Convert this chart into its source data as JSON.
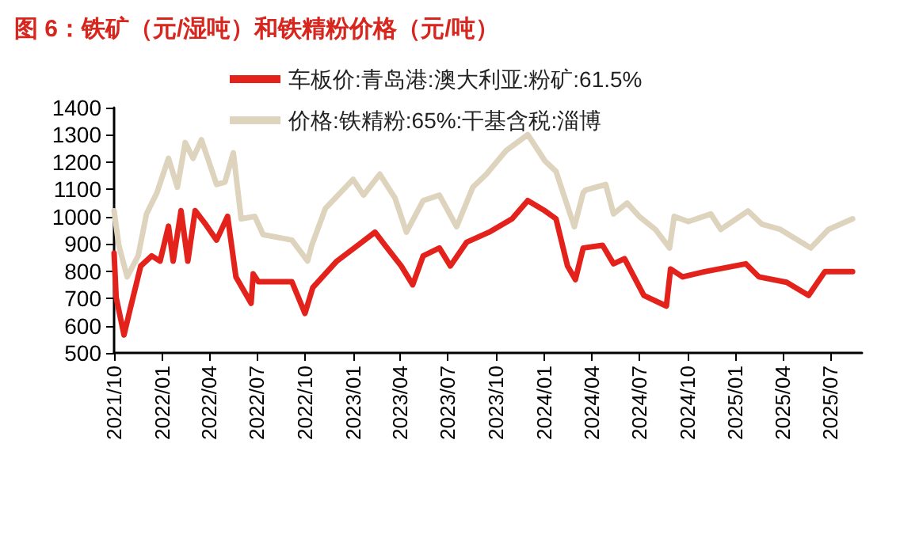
{
  "chart_data": {
    "type": "line",
    "title": "图 6：铁矿（元/湿吨）和铁精粉价格（元/吨）",
    "xlim": [
      "2021-10-01",
      "2025-08-31"
    ],
    "xticks": [
      {
        "value": "2021-10-01",
        "label": "2021/10"
      },
      {
        "value": "2022-01-01",
        "label": "2022/01"
      },
      {
        "value": "2022-04-01",
        "label": "2022/04"
      },
      {
        "value": "2022-07-01",
        "label": "2022/07"
      },
      {
        "value": "2022-10-01",
        "label": "2022/10"
      },
      {
        "value": "2023-01-01",
        "label": "2023/01"
      },
      {
        "value": "2023-04-01",
        "label": "2023/04"
      },
      {
        "value": "2023-07-01",
        "label": "2023/07"
      },
      {
        "value": "2023-10-01",
        "label": "2023/10"
      },
      {
        "value": "2024-01-01",
        "label": "2024/01"
      },
      {
        "value": "2024-04-01",
        "label": "2024/04"
      },
      {
        "value": "2024-07-01",
        "label": "2024/07"
      },
      {
        "value": "2024-10-01",
        "label": "2024/10"
      },
      {
        "value": "2025-01-01",
        "label": "2025/01"
      },
      {
        "value": "2025-04-01",
        "label": "2025/04"
      },
      {
        "value": "2025-07-01",
        "label": "2025/07"
      }
    ],
    "ylim": [
      500,
      1400
    ],
    "yticks": [
      500,
      600,
      700,
      800,
      900,
      1000,
      1100,
      1200,
      1300,
      1400
    ],
    "grid": false,
    "legend": "top",
    "marker": "none",
    "line_style": "solid",
    "series": [
      {
        "name": "车板价:青岛港:澳大利亚:粉矿:61.5%",
        "color": "#e3221b",
        "x": [
          "2021-10-01",
          "2021-10-05",
          "2021-10-20",
          "2021-11-01",
          "2021-11-21",
          "2021-12-12",
          "2021-12-28",
          "2022-01-13",
          "2022-01-22",
          "2022-02-06",
          "2022-02-19",
          "2022-03-05",
          "2022-03-25",
          "2022-04-15",
          "2022-05-06",
          "2022-05-22",
          "2022-06-20",
          "2022-06-24",
          "2022-07-04",
          "2022-09-06",
          "2022-10-01",
          "2022-10-16",
          "2022-12-01",
          "2023-01-10",
          "2023-02-12",
          "2023-03-03",
          "2023-04-03",
          "2023-04-25",
          "2023-05-15",
          "2023-06-15",
          "2023-07-06",
          "2023-08-06",
          "2023-09-18",
          "2023-11-01",
          "2023-12-01",
          "2024-01-03",
          "2024-01-24",
          "2024-02-15",
          "2024-03-01",
          "2024-03-16",
          "2024-04-22",
          "2024-05-13",
          "2024-06-03",
          "2024-07-10",
          "2024-08-22",
          "2024-08-30",
          "2024-09-22",
          "2024-11-03",
          "2025-01-21",
          "2025-02-15",
          "2025-04-09",
          "2025-05-21",
          "2025-06-21",
          "2025-08-13"
        ],
        "values": [
          866,
          703,
          566,
          663,
          819,
          856,
          837,
          965,
          837,
          1022,
          837,
          1022,
          972,
          914,
          1001,
          779,
          682,
          790,
          761,
          761,
          645,
          740,
          837,
          895,
          943,
          895,
          819,
          750,
          856,
          885,
          819,
          906,
          943,
          992,
          1059,
          1021,
          992,
          819,
          769,
          885,
          895,
          827,
          846,
          711,
          672,
          808,
          779,
          798,
          827,
          779,
          759,
          711,
          798,
          798
        ]
      },
      {
        "name": "价格:铁精粉:65%:干基含税:淄博",
        "color": "#ded3bd",
        "x": [
          "2021-10-01",
          "2021-10-10",
          "2021-10-26",
          "2021-11-16",
          "2021-12-02",
          "2021-12-22",
          "2022-01-13",
          "2022-01-30",
          "2022-02-14",
          "2022-03-01",
          "2022-03-17",
          "2022-04-15",
          "2022-05-01",
          "2022-05-17",
          "2022-06-01",
          "2022-06-27",
          "2022-07-13",
          "2022-09-06",
          "2022-10-06",
          "2022-10-14",
          "2022-11-09",
          "2023-01-01",
          "2023-01-21",
          "2023-02-21",
          "2023-03-22",
          "2023-04-13",
          "2023-05-15",
          "2023-06-15",
          "2023-07-18",
          "2023-08-18",
          "2023-09-13",
          "2023-10-21",
          "2023-12-01",
          "2024-01-03",
          "2024-01-24",
          "2024-02-28",
          "2024-03-16",
          "2024-03-21",
          "2024-04-28",
          "2024-05-13",
          "2024-06-08",
          "2024-07-01",
          "2024-08-01",
          "2024-08-28",
          "2024-09-06",
          "2024-10-03",
          "2024-11-15",
          "2024-12-04",
          "2025-01-25",
          "2025-02-21",
          "2025-03-28",
          "2025-05-25",
          "2025-06-28",
          "2025-08-13"
        ],
        "values": [
          1021,
          895,
          779,
          856,
          1010,
          1088,
          1214,
          1108,
          1272,
          1214,
          1282,
          1118,
          1127,
          1234,
          992,
          1001,
          934,
          914,
          837,
          895,
          1030,
          1137,
          1079,
          1156,
          1069,
          943,
          1059,
          1079,
          963,
          1108,
          1156,
          1243,
          1301,
          1204,
          1166,
          963,
          1088,
          1098,
          1118,
          1010,
          1050,
          1001,
          953,
          885,
          1001,
          982,
          1010,
          953,
          1021,
          972,
          953,
          885,
          953,
          992
        ]
      }
    ]
  }
}
